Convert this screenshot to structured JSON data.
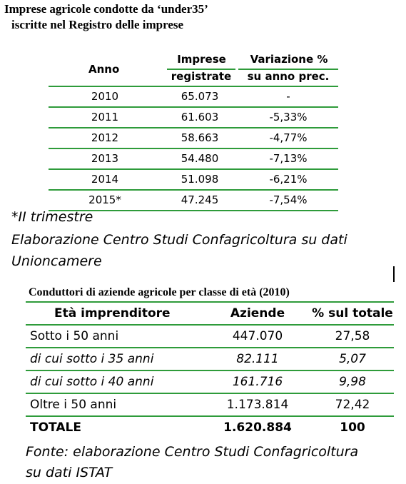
{
  "table1": {
    "title_line1": "Imprese agricole condotte da ‘under35’",
    "title_line2": "iscritte nel Registro delle imprese",
    "headers": {
      "anno": "Anno",
      "imprese_line1": "Imprese",
      "imprese_line2": "registrate",
      "variazione_line1": "Variazione %",
      "variazione_line2": "su anno prec."
    },
    "rows": [
      {
        "anno": "2010",
        "imprese": "65.073",
        "variazione": "-"
      },
      {
        "anno": "2011",
        "imprese": "61.603",
        "variazione": "-5,33%"
      },
      {
        "anno": "2012",
        "imprese": "58.663",
        "variazione": "-4,77%"
      },
      {
        "anno": "2013",
        "imprese": "54.480",
        "variazione": "-7,13%"
      },
      {
        "anno": "2014",
        "imprese": "51.098",
        "variazione": "-6,21%"
      },
      {
        "anno": "2015*",
        "imprese": "47.245",
        "variazione": "-7,54%"
      }
    ],
    "note_line1": "*II trimestre",
    "note_line2": "Elaborazione Centro Studi Confagricoltura su dati",
    "note_line3": "Unioncamere"
  },
  "table2": {
    "title": "Conduttori di aziende agricole per classe di età (2010)",
    "headers": {
      "eta": "Età imprenditore",
      "aziende": "Aziende",
      "percentuale": "% sul totale"
    },
    "rows": [
      {
        "label": "Sotto i 50 anni",
        "aziende": "447.070",
        "percentuale": "27,58"
      },
      {
        "label": "di cui sotto i 35 anni",
        "aziende": "82.111",
        "percentuale": "5,07"
      },
      {
        "label": "di cui sotto i 40 anni",
        "aziende": "161.716",
        "percentuale": "9,98"
      },
      {
        "label": "Oltre i 50 anni",
        "aziende": "1.173.814",
        "percentuale": "72,42"
      }
    ],
    "total": {
      "label": "TOTALE",
      "aziende": "1.620.884",
      "percentuale": "100"
    },
    "source_line1": "Fonte: elaborazione Centro Studi Confagricoltura",
    "source_line2": "su dati ISTAT"
  },
  "colors": {
    "rule_green": "#2e9b3a"
  }
}
